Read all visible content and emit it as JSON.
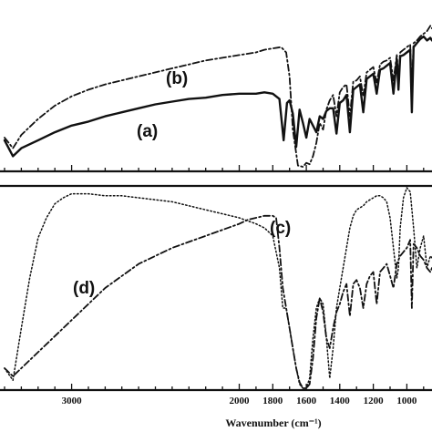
{
  "chart_data": [
    {
      "type": "line",
      "panel": "top",
      "xlim": [
        3400,
        850
      ],
      "xaxis_reversed": true,
      "ylabel": "",
      "series": [
        {
          "name": "(a)",
          "style": "solid",
          "points": [
            [
              3400,
              0.22
            ],
            [
              3350,
              0.1
            ],
            [
              3300,
              0.16
            ],
            [
              3200,
              0.22
            ],
            [
              3100,
              0.28
            ],
            [
              3000,
              0.33
            ],
            [
              2900,
              0.36
            ],
            [
              2800,
              0.4
            ],
            [
              2700,
              0.43
            ],
            [
              2600,
              0.46
            ],
            [
              2500,
              0.49
            ],
            [
              2400,
              0.51
            ],
            [
              2300,
              0.53
            ],
            [
              2200,
              0.54
            ],
            [
              2100,
              0.56
            ],
            [
              2000,
              0.57
            ],
            [
              1900,
              0.57
            ],
            [
              1850,
              0.58
            ],
            [
              1800,
              0.57
            ],
            [
              1760,
              0.53
            ],
            [
              1735,
              0.22
            ],
            [
              1715,
              0.5
            ],
            [
              1700,
              0.52
            ],
            [
              1680,
              0.42
            ],
            [
              1660,
              0.17
            ],
            [
              1640,
              0.45
            ],
            [
              1620,
              0.35
            ],
            [
              1600,
              0.24
            ],
            [
              1580,
              0.38
            ],
            [
              1560,
              0.33
            ],
            [
              1540,
              0.28
            ],
            [
              1520,
              0.4
            ],
            [
              1500,
              0.38
            ],
            [
              1480,
              0.44
            ],
            [
              1460,
              0.46
            ],
            [
              1440,
              0.46
            ],
            [
              1420,
              0.27
            ],
            [
              1400,
              0.5
            ],
            [
              1380,
              0.52
            ],
            [
              1360,
              0.56
            ],
            [
              1340,
              0.28
            ],
            [
              1320,
              0.6
            ],
            [
              1300,
              0.62
            ],
            [
              1280,
              0.64
            ],
            [
              1260,
              0.43
            ],
            [
              1240,
              0.68
            ],
            [
              1220,
              0.7
            ],
            [
              1200,
              0.72
            ],
            [
              1180,
              0.57
            ],
            [
              1160,
              0.75
            ],
            [
              1140,
              0.76
            ],
            [
              1120,
              0.78
            ],
            [
              1100,
              0.8
            ],
            [
              1080,
              0.57
            ],
            [
              1060,
              0.83
            ],
            [
              1050,
              0.6
            ],
            [
              1040,
              0.85
            ],
            [
              1020,
              0.86
            ],
            [
              1000,
              0.88
            ],
            [
              980,
              0.9
            ],
            [
              970,
              0.43
            ],
            [
              960,
              0.92
            ],
            [
              940,
              0.95
            ],
            [
              920,
              0.98
            ],
            [
              900,
              1.0
            ],
            [
              880,
              0.97
            ],
            [
              860,
              0.99
            ],
            [
              850,
              0.97
            ]
          ]
        },
        {
          "name": "(b)",
          "style": "dash-dot",
          "points": [
            [
              3400,
              0.24
            ],
            [
              3350,
              0.16
            ],
            [
              3300,
              0.26
            ],
            [
              3200,
              0.38
            ],
            [
              3100,
              0.48
            ],
            [
              3000,
              0.55
            ],
            [
              2900,
              0.6
            ],
            [
              2800,
              0.64
            ],
            [
              2700,
              0.67
            ],
            [
              2600,
              0.7
            ],
            [
              2500,
              0.73
            ],
            [
              2400,
              0.76
            ],
            [
              2300,
              0.79
            ],
            [
              2200,
              0.82
            ],
            [
              2100,
              0.84
            ],
            [
              2000,
              0.86
            ],
            [
              1900,
              0.88
            ],
            [
              1850,
              0.9
            ],
            [
              1800,
              0.91
            ],
            [
              1750,
              0.92
            ],
            [
              1720,
              0.88
            ],
            [
              1700,
              0.7
            ],
            [
              1680,
              0.3
            ],
            [
              1650,
              0.03
            ],
            [
              1620,
              0.02
            ],
            [
              1600,
              0.05
            ],
            [
              1580,
              0.04
            ],
            [
              1560,
              0.1
            ],
            [
              1540,
              0.2
            ],
            [
              1520,
              0.35
            ],
            [
              1500,
              0.3
            ],
            [
              1480,
              0.45
            ],
            [
              1460,
              0.52
            ],
            [
              1440,
              0.56
            ],
            [
              1420,
              0.4
            ],
            [
              1400,
              0.58
            ],
            [
              1380,
              0.62
            ],
            [
              1360,
              0.64
            ],
            [
              1340,
              0.4
            ],
            [
              1320,
              0.66
            ],
            [
              1300,
              0.67
            ],
            [
              1280,
              0.7
            ],
            [
              1260,
              0.55
            ],
            [
              1240,
              0.73
            ],
            [
              1220,
              0.75
            ],
            [
              1200,
              0.77
            ],
            [
              1180,
              0.65
            ],
            [
              1160,
              0.79
            ],
            [
              1140,
              0.81
            ],
            [
              1120,
              0.82
            ],
            [
              1100,
              0.84
            ],
            [
              1080,
              0.67
            ],
            [
              1060,
              0.86
            ],
            [
              1050,
              0.68
            ],
            [
              1040,
              0.88
            ],
            [
              1020,
              0.9
            ],
            [
              1000,
              0.92
            ],
            [
              980,
              0.94
            ],
            [
              970,
              0.6
            ],
            [
              960,
              0.95
            ],
            [
              940,
              0.97
            ],
            [
              920,
              1.0
            ],
            [
              900,
              1.02
            ],
            [
              880,
              1.04
            ],
            [
              860,
              1.08
            ],
            [
              850,
              1.06
            ]
          ]
        }
      ]
    },
    {
      "type": "line",
      "panel": "bottom",
      "xlim": [
        3400,
        850
      ],
      "xaxis_reversed": true,
      "xlabel": "Wavenumber (cm⁻¹)",
      "xticks": [
        3000,
        2000,
        1800,
        1600,
        1400,
        1200,
        1000
      ],
      "tick_labels": [
        "3000",
        "2000",
        "1800",
        "1600",
        "1400",
        "1200",
        "1000"
      ],
      "series": [
        {
          "name": "(c)",
          "style": "dotted",
          "points": [
            [
              3400,
              0.1
            ],
            [
              3350,
              0.04
            ],
            [
              3300,
              0.3
            ],
            [
              3250,
              0.55
            ],
            [
              3200,
              0.75
            ],
            [
              3150,
              0.85
            ],
            [
              3100,
              0.92
            ],
            [
              3050,
              0.95
            ],
            [
              3000,
              0.97
            ],
            [
              2900,
              0.97
            ],
            [
              2800,
              0.96
            ],
            [
              2700,
              0.96
            ],
            [
              2600,
              0.95
            ],
            [
              2500,
              0.94
            ],
            [
              2400,
              0.93
            ],
            [
              2300,
              0.91
            ],
            [
              2200,
              0.89
            ],
            [
              2100,
              0.87
            ],
            [
              2000,
              0.85
            ],
            [
              1900,
              0.82
            ],
            [
              1850,
              0.8
            ],
            [
              1800,
              0.76
            ],
            [
              1760,
              0.6
            ],
            [
              1740,
              0.4
            ],
            [
              1720,
              0.4
            ],
            [
              1700,
              0.3
            ],
            [
              1680,
              0.2
            ],
            [
              1660,
              0.1
            ],
            [
              1640,
              0.02
            ],
            [
              1620,
              0.0
            ],
            [
              1600,
              0.0
            ],
            [
              1580,
              0.05
            ],
            [
              1560,
              0.25
            ],
            [
              1540,
              0.4
            ],
            [
              1520,
              0.45
            ],
            [
              1500,
              0.42
            ],
            [
              1480,
              0.25
            ],
            [
              1460,
              0.05
            ],
            [
              1440,
              0.2
            ],
            [
              1420,
              0.4
            ],
            [
              1400,
              0.5
            ],
            [
              1380,
              0.6
            ],
            [
              1360,
              0.7
            ],
            [
              1340,
              0.8
            ],
            [
              1320,
              0.86
            ],
            [
              1300,
              0.89
            ],
            [
              1280,
              0.9
            ],
            [
              1260,
              0.91
            ],
            [
              1240,
              0.93
            ],
            [
              1220,
              0.94
            ],
            [
              1200,
              0.95
            ],
            [
              1180,
              0.96
            ],
            [
              1160,
              0.96
            ],
            [
              1140,
              0.95
            ],
            [
              1120,
              0.93
            ],
            [
              1100,
              0.85
            ],
            [
              1080,
              0.7
            ],
            [
              1060,
              0.55
            ],
            [
              1050,
              0.6
            ],
            [
              1040,
              0.8
            ],
            [
              1020,
              0.95
            ],
            [
              1000,
              1.0
            ],
            [
              980,
              0.98
            ],
            [
              960,
              0.8
            ],
            [
              940,
              0.6
            ],
            [
              920,
              0.7
            ],
            [
              900,
              0.76
            ],
            [
              880,
              0.6
            ],
            [
              860,
              0.66
            ],
            [
              850,
              0.65
            ]
          ]
        },
        {
          "name": "(d)",
          "style": "dash-dot",
          "points": [
            [
              3400,
              0.1
            ],
            [
              3350,
              0.06
            ],
            [
              3300,
              0.1
            ],
            [
              3200,
              0.18
            ],
            [
              3100,
              0.26
            ],
            [
              3000,
              0.34
            ],
            [
              2900,
              0.42
            ],
            [
              2800,
              0.5
            ],
            [
              2700,
              0.56
            ],
            [
              2600,
              0.62
            ],
            [
              2500,
              0.66
            ],
            [
              2400,
              0.7
            ],
            [
              2300,
              0.73
            ],
            [
              2200,
              0.76
            ],
            [
              2100,
              0.79
            ],
            [
              2000,
              0.82
            ],
            [
              1950,
              0.84
            ],
            [
              1900,
              0.85
            ],
            [
              1850,
              0.86
            ],
            [
              1800,
              0.86
            ],
            [
              1780,
              0.85
            ],
            [
              1760,
              0.7
            ],
            [
              1740,
              0.5
            ],
            [
              1720,
              0.4
            ],
            [
              1700,
              0.3
            ],
            [
              1680,
              0.2
            ],
            [
              1660,
              0.1
            ],
            [
              1640,
              0.03
            ],
            [
              1620,
              0.0
            ],
            [
              1600,
              0.0
            ],
            [
              1580,
              0.02
            ],
            [
              1560,
              0.15
            ],
            [
              1540,
              0.35
            ],
            [
              1520,
              0.45
            ],
            [
              1500,
              0.38
            ],
            [
              1480,
              0.25
            ],
            [
              1460,
              0.2
            ],
            [
              1440,
              0.3
            ],
            [
              1420,
              0.38
            ],
            [
              1400,
              0.42
            ],
            [
              1380,
              0.48
            ],
            [
              1360,
              0.52
            ],
            [
              1340,
              0.36
            ],
            [
              1320,
              0.52
            ],
            [
              1300,
              0.54
            ],
            [
              1280,
              0.5
            ],
            [
              1260,
              0.4
            ],
            [
              1240,
              0.52
            ],
            [
              1220,
              0.56
            ],
            [
              1200,
              0.58
            ],
            [
              1180,
              0.42
            ],
            [
              1160,
              0.58
            ],
            [
              1140,
              0.6
            ],
            [
              1120,
              0.62
            ],
            [
              1100,
              0.56
            ],
            [
              1080,
              0.5
            ],
            [
              1060,
              0.62
            ],
            [
              1050,
              0.64
            ],
            [
              1040,
              0.66
            ],
            [
              1020,
              0.68
            ],
            [
              1000,
              0.7
            ],
            [
              980,
              0.74
            ],
            [
              970,
              0.4
            ],
            [
              960,
              0.72
            ],
            [
              940,
              0.7
            ],
            [
              920,
              0.66
            ],
            [
              900,
              0.64
            ],
            [
              880,
              0.6
            ],
            [
              860,
              0.58
            ],
            [
              850,
              0.6
            ]
          ]
        }
      ]
    }
  ]
}
